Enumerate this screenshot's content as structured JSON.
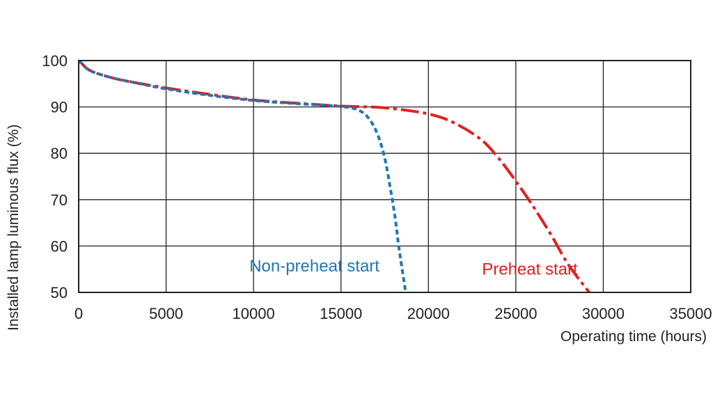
{
  "chart_data": {
    "type": "line",
    "title": "",
    "xlabel": "Operating time (hours)",
    "ylabel": "Installed lamp luminous flux (%)",
    "xlim": [
      0,
      35000
    ],
    "ylim": [
      50,
      100
    ],
    "x_ticks": [
      0,
      5000,
      10000,
      15000,
      20000,
      25000,
      30000,
      35000
    ],
    "x_tick_labels": [
      "0",
      "5000",
      "10000",
      "15000",
      "20000",
      "25000",
      "30000",
      "35000"
    ],
    "y_ticks": [
      50,
      60,
      70,
      80,
      90,
      100
    ],
    "y_tick_labels": [
      "50",
      "60",
      "70",
      "80",
      "90",
      "100"
    ],
    "grid": true,
    "legend": "none",
    "series": [
      {
        "name": "Preheat start",
        "color": "#e02020",
        "line_style": "long-dash",
        "points": [
          [
            0,
            100
          ],
          [
            200,
            99.3
          ],
          [
            500,
            98.2
          ],
          [
            1000,
            97.3
          ],
          [
            2000,
            96.2
          ],
          [
            3000,
            95.4
          ],
          [
            5000,
            94.1
          ],
          [
            7500,
            92.7
          ],
          [
            10000,
            91.5
          ],
          [
            12500,
            90.8
          ],
          [
            15000,
            90.2
          ],
          [
            17500,
            89.8
          ],
          [
            20000,
            88.5
          ],
          [
            21500,
            86.5
          ],
          [
            23000,
            83
          ],
          [
            24000,
            79
          ],
          [
            25000,
            74
          ],
          [
            26000,
            68.5
          ],
          [
            27000,
            62.5
          ],
          [
            28000,
            56
          ],
          [
            29200,
            50
          ]
        ]
      },
      {
        "name": "Non-preheat start",
        "color": "#1f77b4",
        "line_style": "short-dash",
        "points": [
          [
            0,
            100
          ],
          [
            200,
            99.3
          ],
          [
            500,
            98.2
          ],
          [
            1000,
            97.3
          ],
          [
            2000,
            96.2
          ],
          [
            3000,
            95.4
          ],
          [
            5000,
            93.9
          ],
          [
            7500,
            92.5
          ],
          [
            10000,
            91.4
          ],
          [
            12500,
            90.7
          ],
          [
            15000,
            90.1
          ],
          [
            16000,
            89.3
          ],
          [
            16600,
            87.5
          ],
          [
            17100,
            84
          ],
          [
            17500,
            79
          ],
          [
            17800,
            73
          ],
          [
            18100,
            66
          ],
          [
            18300,
            60
          ],
          [
            18500,
            55
          ],
          [
            18700,
            50
          ]
        ]
      }
    ],
    "annotations": [
      {
        "text": "Non-preheat start",
        "color": "#1f77b4",
        "x": 17200,
        "y": 54.5
      },
      {
        "text": "Preheat start",
        "color": "#e02020",
        "x": 25800,
        "y": 53.8
      }
    ],
    "ylabel_symbol": "(%)"
  }
}
